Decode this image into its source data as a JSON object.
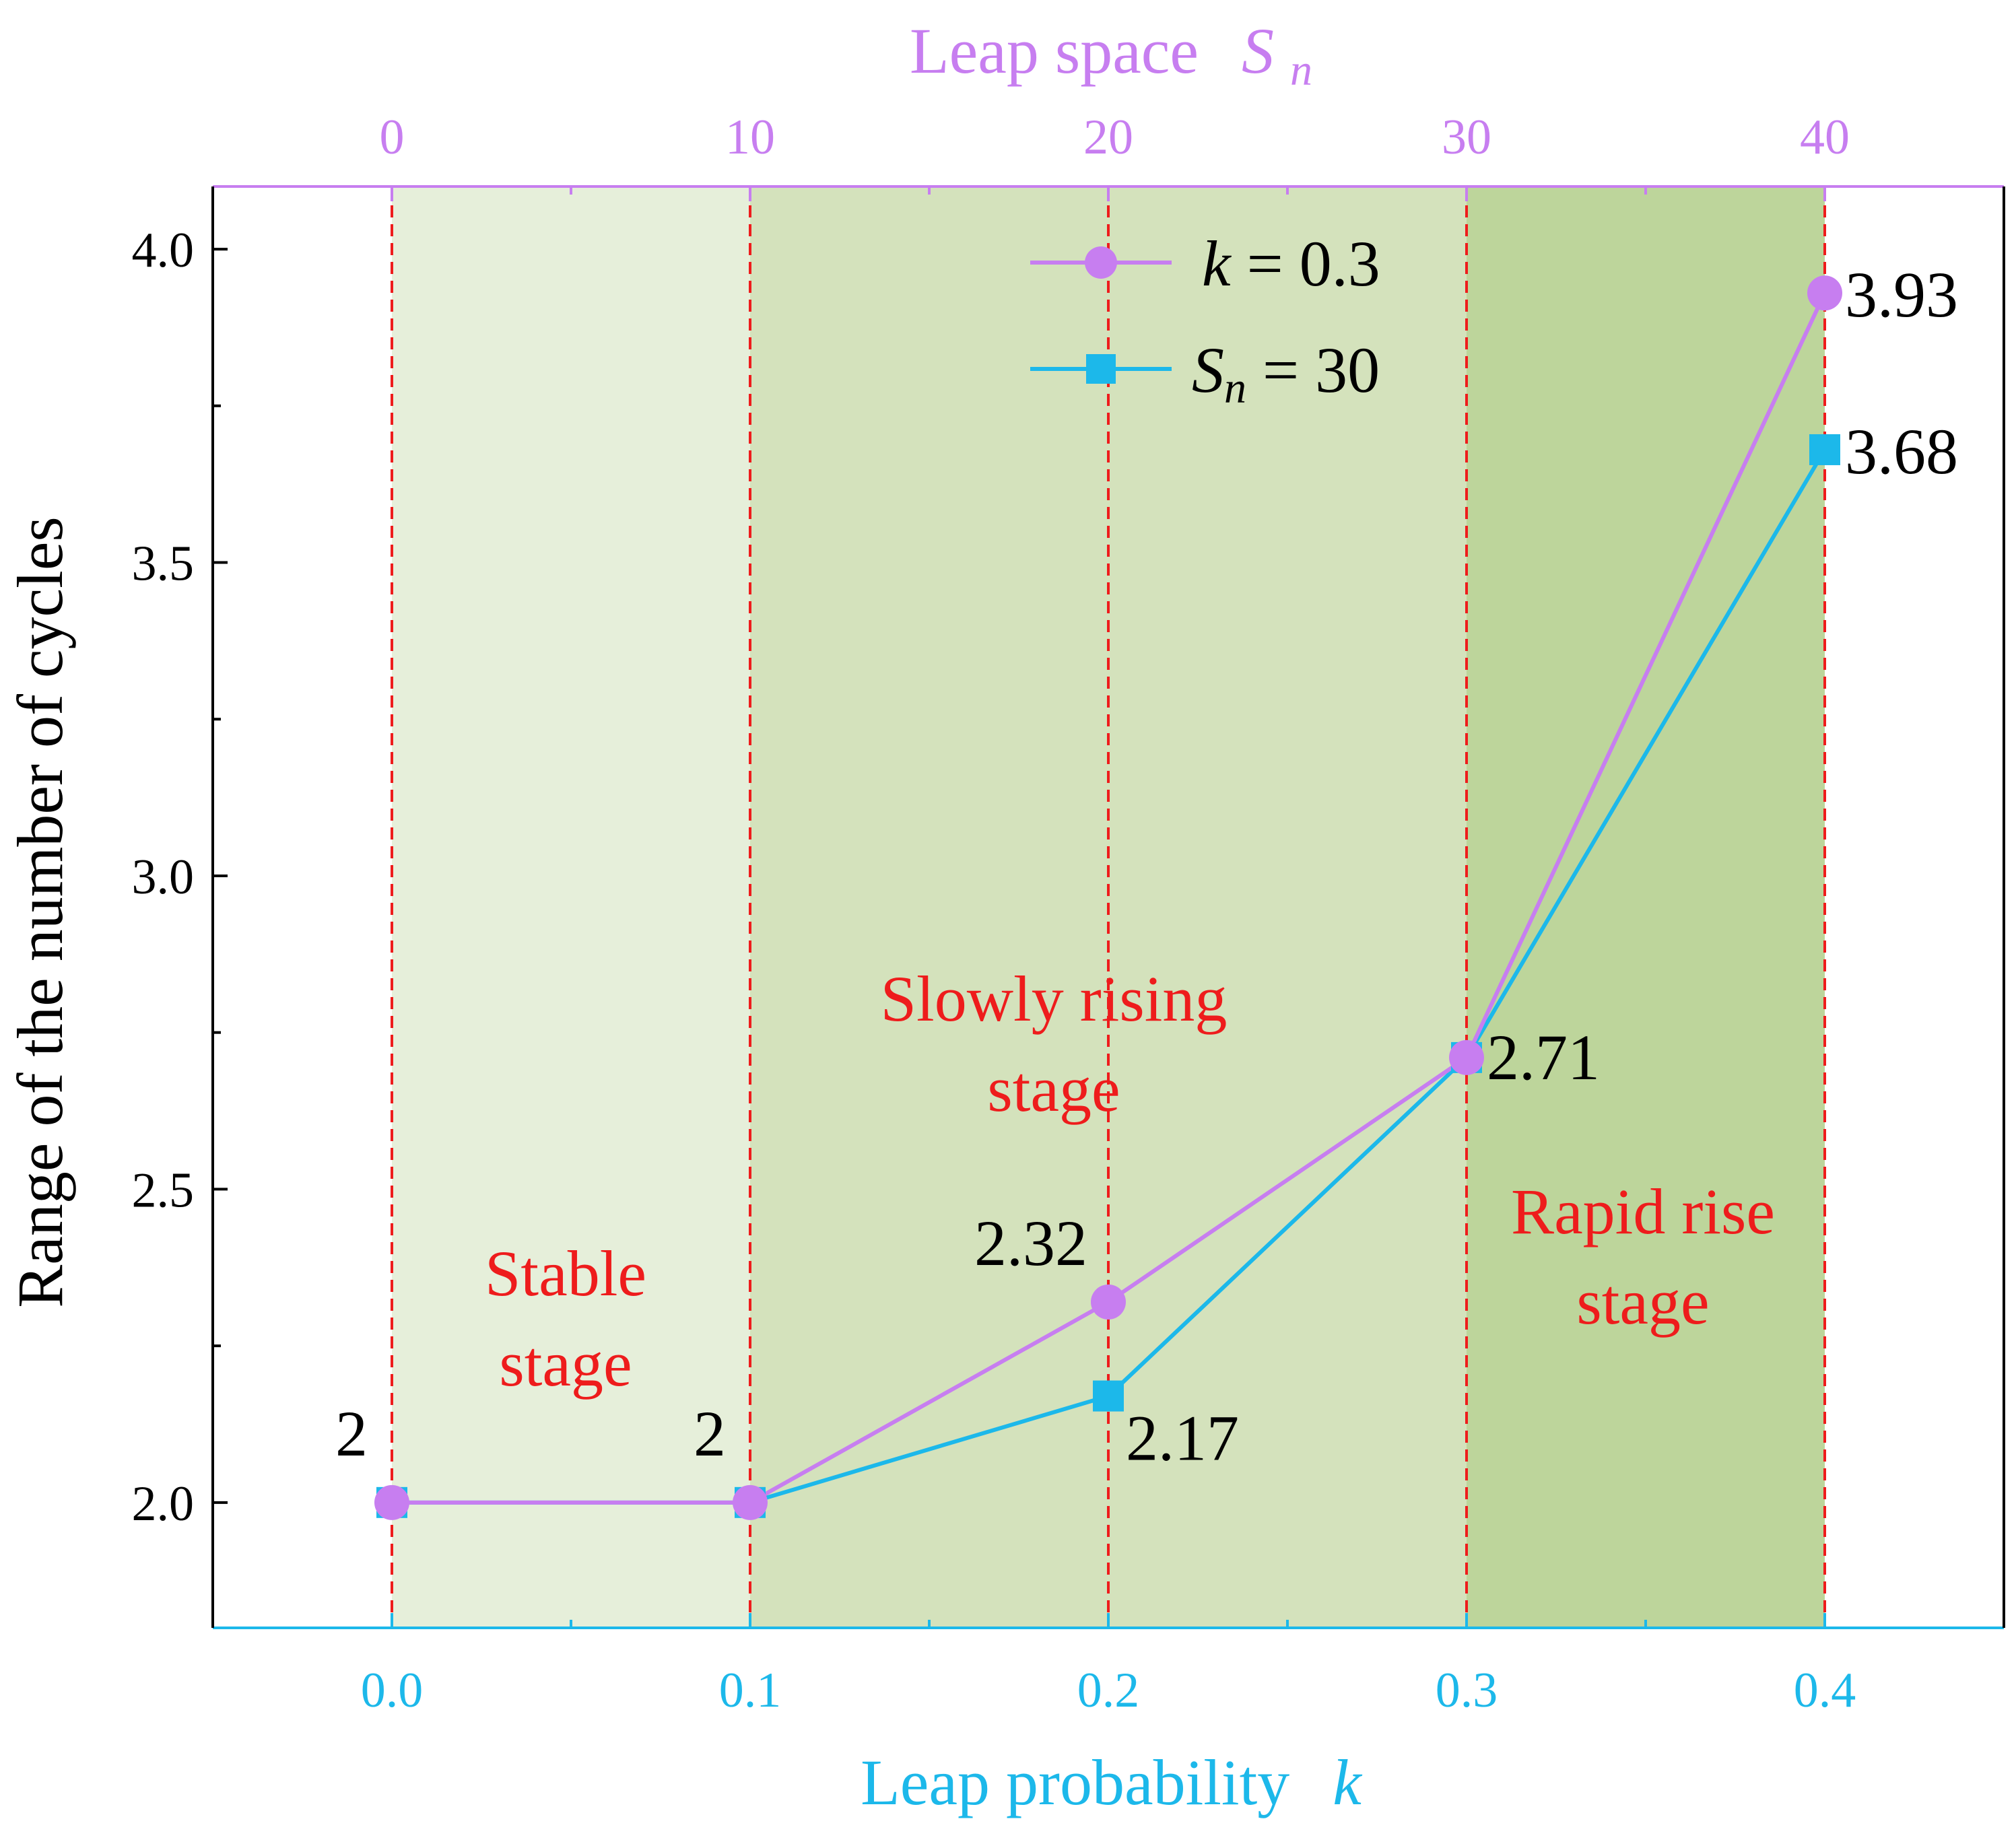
{
  "colors": {
    "series_k": "#c77ef0",
    "series_sn": "#1cb8ea",
    "stage_stable": "#e6efda",
    "stage_slow": "#d4e2bc",
    "stage_rapid": "#bdd59b",
    "divider": "#ee1c1c",
    "stage_text": "#ee1c1c",
    "axis_left": "#000000"
  },
  "chart_data": {
    "type": "line",
    "x_bottom": {
      "label": "Leap probability",
      "symbol": "k",
      "ticks": [
        "0.0",
        "0.1",
        "0.2",
        "0.3",
        "0.4"
      ],
      "tick_values": [
        0.0,
        0.1,
        0.2,
        0.3,
        0.4
      ],
      "range": [
        -0.05,
        0.45
      ]
    },
    "x_top": {
      "label": "Leap space",
      "symbol": "S",
      "subscript": "n",
      "ticks": [
        "0",
        "10",
        "20",
        "30",
        "40"
      ],
      "tick_values": [
        0,
        10,
        20,
        30,
        40
      ],
      "range": [
        -5,
        45
      ]
    },
    "y": {
      "label": "Range of the number of cycles",
      "ticks": [
        "2.0",
        "2.5",
        "3.0",
        "3.5",
        "4.0"
      ],
      "tick_values": [
        2.0,
        2.5,
        3.0,
        3.5,
        4.0
      ],
      "range": [
        1.8,
        4.1
      ]
    },
    "x": [
      0.0,
      0.1,
      0.2,
      0.3,
      0.4
    ],
    "series": [
      {
        "name": "k = 0.3",
        "legend_symbol": "k",
        "legend_rest": " = 0.3",
        "marker": "circle",
        "values": [
          2,
          2,
          2.32,
          2.71,
          3.93
        ],
        "labels": [
          "2",
          "2",
          "2.32",
          "2.71",
          "3.93"
        ]
      },
      {
        "name": "Sn = 30",
        "legend_symbol": "S",
        "legend_sub": "n",
        "legend_rest": " = 30",
        "marker": "square",
        "values": [
          2,
          2,
          2.17,
          2.71,
          3.68
        ],
        "labels": [
          "",
          "",
          "2.17",
          "",
          "3.68"
        ]
      }
    ],
    "stages": [
      {
        "lines": [
          "Stable",
          "stage"
        ],
        "from": 0.0,
        "to": 0.1
      },
      {
        "lines": [
          "Slowly rising",
          "stage"
        ],
        "from": 0.1,
        "to": 0.3
      },
      {
        "lines": [
          "Rapid rise",
          "stage"
        ],
        "from": 0.3,
        "to": 0.4
      }
    ],
    "dividers": [
      0.0,
      0.1,
      0.2,
      0.3,
      0.4
    ],
    "legend": "top-right"
  }
}
